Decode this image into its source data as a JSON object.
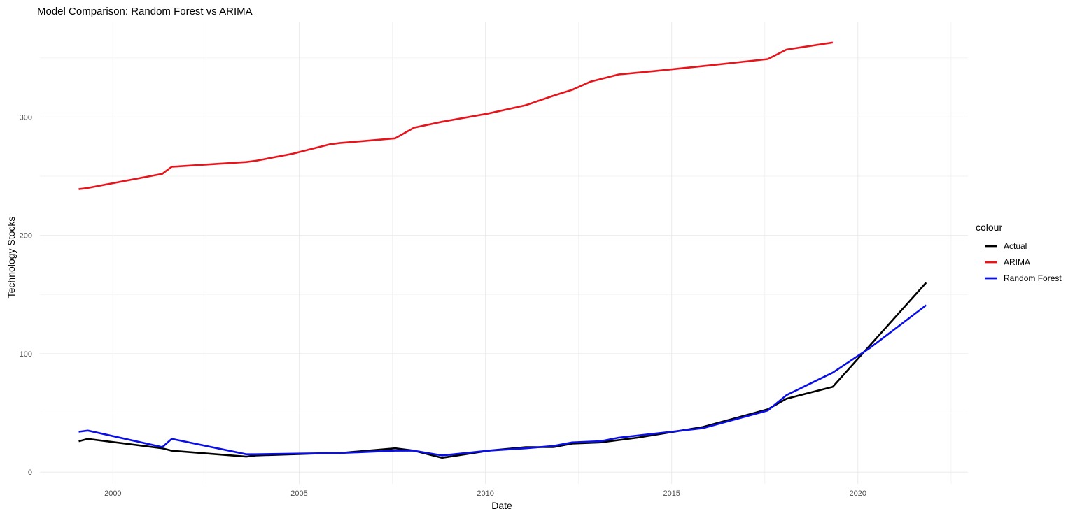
{
  "chart_data": {
    "type": "line",
    "title": "Model Comparison: Random Forest vs ARIMA",
    "xlabel": "Date",
    "ylabel": "Technology Stocks",
    "xlim": [
      "1998-01-15",
      "2022-12-15"
    ],
    "ylim": [
      -10,
      380
    ],
    "x_ticks": [
      "2000",
      "2005",
      "2010",
      "2015",
      "2020"
    ],
    "y_ticks": [
      "0",
      "100",
      "200",
      "300"
    ],
    "grid": true,
    "legend": {
      "title": "colour",
      "position": "right"
    },
    "series": [
      {
        "name": "Actual",
        "color": "#000000",
        "points": [
          {
            "x": "1999-01-31",
            "y": 26
          },
          {
            "x": "1999-04-30",
            "y": 28
          },
          {
            "x": "2001-04-30",
            "y": 20
          },
          {
            "x": "2001-07-31",
            "y": 18
          },
          {
            "x": "2003-07-31",
            "y": 13
          },
          {
            "x": "2003-10-31",
            "y": 14
          },
          {
            "x": "2005-10-31",
            "y": 16
          },
          {
            "x": "2006-01-31",
            "y": 16
          },
          {
            "x": "2007-07-31",
            "y": 20
          },
          {
            "x": "2008-01-31",
            "y": 18
          },
          {
            "x": "2008-10-31",
            "y": 12
          },
          {
            "x": "2010-01-31",
            "y": 18
          },
          {
            "x": "2011-01-31",
            "y": 21
          },
          {
            "x": "2011-10-31",
            "y": 21
          },
          {
            "x": "2012-04-30",
            "y": 24
          },
          {
            "x": "2013-01-31",
            "y": 25
          },
          {
            "x": "2014-01-31",
            "y": 29
          },
          {
            "x": "2015-10-31",
            "y": 38
          },
          {
            "x": "2017-07-31",
            "y": 53
          },
          {
            "x": "2018-01-31",
            "y": 62
          },
          {
            "x": "2019-04-30",
            "y": 72
          },
          {
            "x": "2021-10-31",
            "y": 160
          }
        ]
      },
      {
        "name": "ARIMA",
        "color": "#e8141b",
        "points": [
          {
            "x": "1999-01-31",
            "y": 239
          },
          {
            "x": "1999-04-30",
            "y": 240
          },
          {
            "x": "2001-04-30",
            "y": 252
          },
          {
            "x": "2001-07-31",
            "y": 258
          },
          {
            "x": "2003-07-31",
            "y": 262
          },
          {
            "x": "2003-10-31",
            "y": 263
          },
          {
            "x": "2004-10-31",
            "y": 269
          },
          {
            "x": "2005-10-31",
            "y": 277
          },
          {
            "x": "2006-01-31",
            "y": 278
          },
          {
            "x": "2007-07-31",
            "y": 282
          },
          {
            "x": "2008-01-31",
            "y": 291
          },
          {
            "x": "2008-10-31",
            "y": 296
          },
          {
            "x": "2010-01-31",
            "y": 303
          },
          {
            "x": "2011-01-31",
            "y": 310
          },
          {
            "x": "2011-10-31",
            "y": 318
          },
          {
            "x": "2012-04-30",
            "y": 323
          },
          {
            "x": "2012-10-31",
            "y": 330
          },
          {
            "x": "2013-07-31",
            "y": 336
          },
          {
            "x": "2014-07-31",
            "y": 339
          },
          {
            "x": "2015-10-31",
            "y": 343
          },
          {
            "x": "2017-07-31",
            "y": 349
          },
          {
            "x": "2018-01-31",
            "y": 357
          },
          {
            "x": "2019-04-30",
            "y": 363
          }
        ]
      },
      {
        "name": "Random Forest",
        "color": "#0a0fe8",
        "points": [
          {
            "x": "1999-01-31",
            "y": 34
          },
          {
            "x": "1999-04-30",
            "y": 35
          },
          {
            "x": "2001-04-30",
            "y": 21
          },
          {
            "x": "2001-07-31",
            "y": 28
          },
          {
            "x": "2003-07-31",
            "y": 15
          },
          {
            "x": "2003-10-31",
            "y": 15
          },
          {
            "x": "2005-10-31",
            "y": 16
          },
          {
            "x": "2006-01-31",
            "y": 16
          },
          {
            "x": "2007-07-31",
            "y": 18
          },
          {
            "x": "2008-01-31",
            "y": 18
          },
          {
            "x": "2008-10-31",
            "y": 14
          },
          {
            "x": "2010-01-31",
            "y": 18
          },
          {
            "x": "2011-01-31",
            "y": 20
          },
          {
            "x": "2011-10-31",
            "y": 22
          },
          {
            "x": "2012-04-30",
            "y": 25
          },
          {
            "x": "2013-01-31",
            "y": 26
          },
          {
            "x": "2013-07-31",
            "y": 29
          },
          {
            "x": "2015-10-31",
            "y": 37
          },
          {
            "x": "2017-07-31",
            "y": 52
          },
          {
            "x": "2018-01-31",
            "y": 65
          },
          {
            "x": "2019-04-30",
            "y": 84
          },
          {
            "x": "2020-04-30",
            "y": 105
          },
          {
            "x": "2021-10-31",
            "y": 141
          }
        ]
      }
    ]
  }
}
